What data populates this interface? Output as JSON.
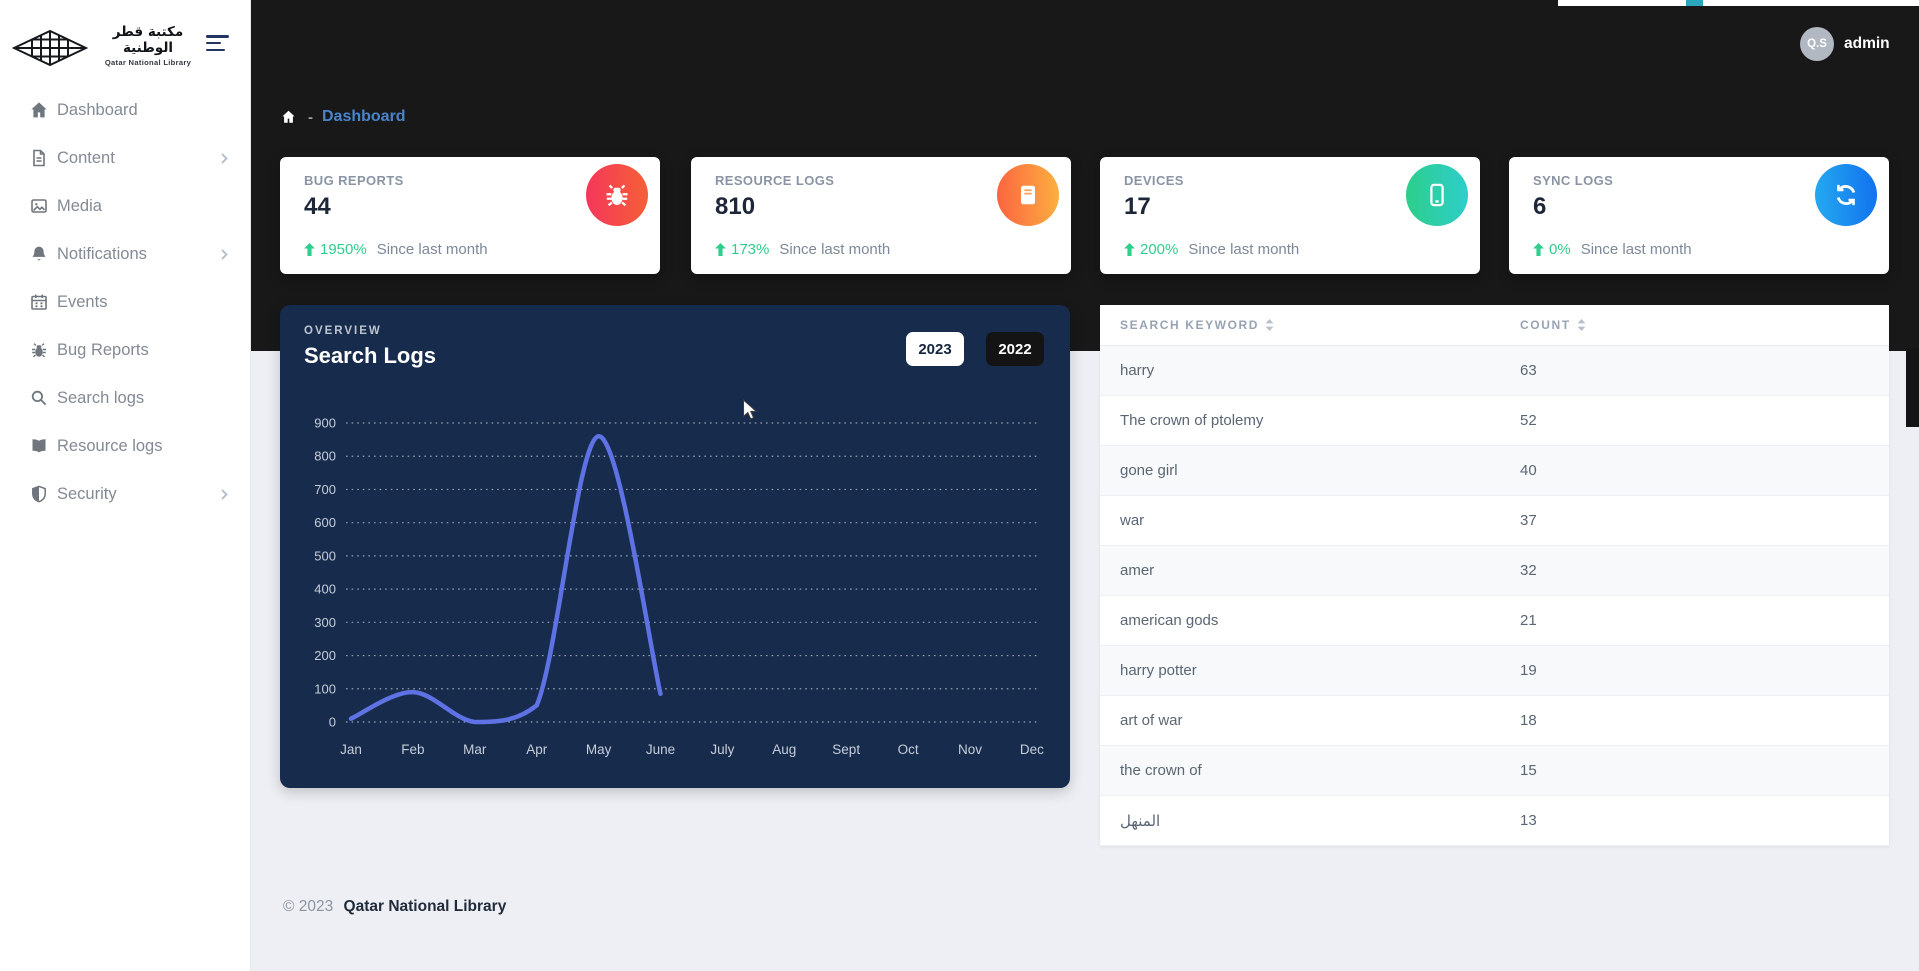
{
  "brand": {
    "name_ar": "مكتبة قطر الوطنية",
    "name_en": "Qatar National Library"
  },
  "sidebar": {
    "items": [
      {
        "label": "Dashboard",
        "icon": "home",
        "chevron": false
      },
      {
        "label": "Content",
        "icon": "file",
        "chevron": true
      },
      {
        "label": "Media",
        "icon": "image",
        "chevron": false
      },
      {
        "label": "Notifications",
        "icon": "bell",
        "chevron": true
      },
      {
        "label": "Events",
        "icon": "calendar",
        "chevron": false
      },
      {
        "label": "Bug Reports",
        "icon": "bug",
        "chevron": false
      },
      {
        "label": "Search logs",
        "icon": "search",
        "chevron": false
      },
      {
        "label": "Resource logs",
        "icon": "book",
        "chevron": false
      },
      {
        "label": "Security",
        "icon": "shield",
        "chevron": true
      }
    ]
  },
  "header": {
    "breadcrumb": {
      "separator": "-",
      "current": "Dashboard"
    },
    "user": {
      "initials": "Q.S",
      "name": "admin"
    }
  },
  "stat_cards": [
    {
      "title": "BUG REPORTS",
      "value": "44",
      "delta": "1950%",
      "note": "Since last month",
      "icon": "bug",
      "gradient": [
        "#f5365c",
        "#f56036"
      ]
    },
    {
      "title": "RESOURCE LOGS",
      "value": "810",
      "delta": "173%",
      "note": "Since last month",
      "icon": "book",
      "gradient": [
        "#fb6340",
        "#fbb140"
      ]
    },
    {
      "title": "DEVICES",
      "value": "17",
      "delta": "200%",
      "note": "Since last month",
      "icon": "mobile",
      "gradient": [
        "#2dce89",
        "#2dcecc"
      ]
    },
    {
      "title": "SYNC LOGS",
      "value": "6",
      "delta": "0%",
      "note": "Since last month",
      "icon": "sync",
      "gradient": [
        "#25aaef",
        "#1171ef"
      ]
    }
  ],
  "chart_card": {
    "kicker": "OVERVIEW",
    "title": "Search Logs",
    "year_buttons": [
      {
        "label": "2023",
        "active": true
      },
      {
        "label": "2022",
        "active": false
      }
    ]
  },
  "chart_data": {
    "type": "line",
    "title": "Search Logs",
    "x": [
      "Jan",
      "Feb",
      "Mar",
      "Apr",
      "May",
      "June",
      "July",
      "Aug",
      "Sept",
      "Oct",
      "Nov",
      "Dec"
    ],
    "series": [
      {
        "name": "2023",
        "values": [
          10,
          90,
          0,
          50,
          860,
          85
        ]
      }
    ],
    "ylim": [
      0,
      900
    ],
    "ytick_step": 100,
    "grid": "horizontal-dotted",
    "legend": "none",
    "line_color": "#5e72e4"
  },
  "table": {
    "columns": [
      "Search Keyword",
      "Count"
    ],
    "rows": [
      [
        "harry",
        "63"
      ],
      [
        "The crown of ptolemy",
        "52"
      ],
      [
        "gone girl",
        "40"
      ],
      [
        "war",
        "37"
      ],
      [
        "amer",
        "32"
      ],
      [
        "american gods",
        "21"
      ],
      [
        "harry potter",
        "19"
      ],
      [
        "art of war",
        "18"
      ],
      [
        "the crown of",
        "15"
      ],
      [
        "المنهل",
        "13"
      ]
    ]
  },
  "footer": {
    "copyright": "© 2023",
    "brand": "Qatar National Library"
  },
  "colors": {
    "header_bg": "#181818",
    "chart_card_bg": "#172b4d",
    "accent_line": "#5e72e4",
    "positive": "#2fce8c",
    "breadcrumb_link": "#4a84cb"
  }
}
